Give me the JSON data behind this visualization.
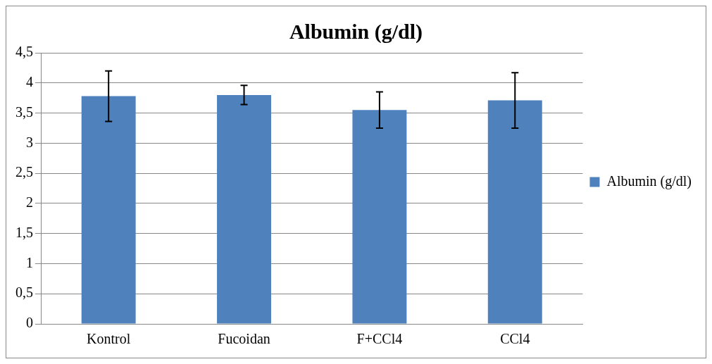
{
  "chart_data": {
    "type": "bar",
    "title": "Albumin (g/dl)",
    "categories": [
      "Kontrol",
      "Fucoidan",
      "F+CCl4",
      "CCl4"
    ],
    "series": [
      {
        "name": "Albumin (g/dl)",
        "color": "#4f81bd",
        "values": [
          3.78,
          3.8,
          3.55,
          3.71
        ],
        "errors": [
          0.42,
          0.16,
          0.3,
          0.46
        ]
      }
    ],
    "ylim": [
      0,
      4.5
    ],
    "yticks": [
      0,
      {
        "value": 0.5,
        "label": "0,5"
      },
      1,
      {
        "value": 1.5,
        "label": "1,5"
      },
      2,
      {
        "value": 2.5,
        "label": "2,5"
      },
      3,
      {
        "value": 3.5,
        "label": "3,5"
      },
      4,
      {
        "value": 4.5,
        "label": "4,5"
      }
    ],
    "grid": "y",
    "legend": "right"
  }
}
